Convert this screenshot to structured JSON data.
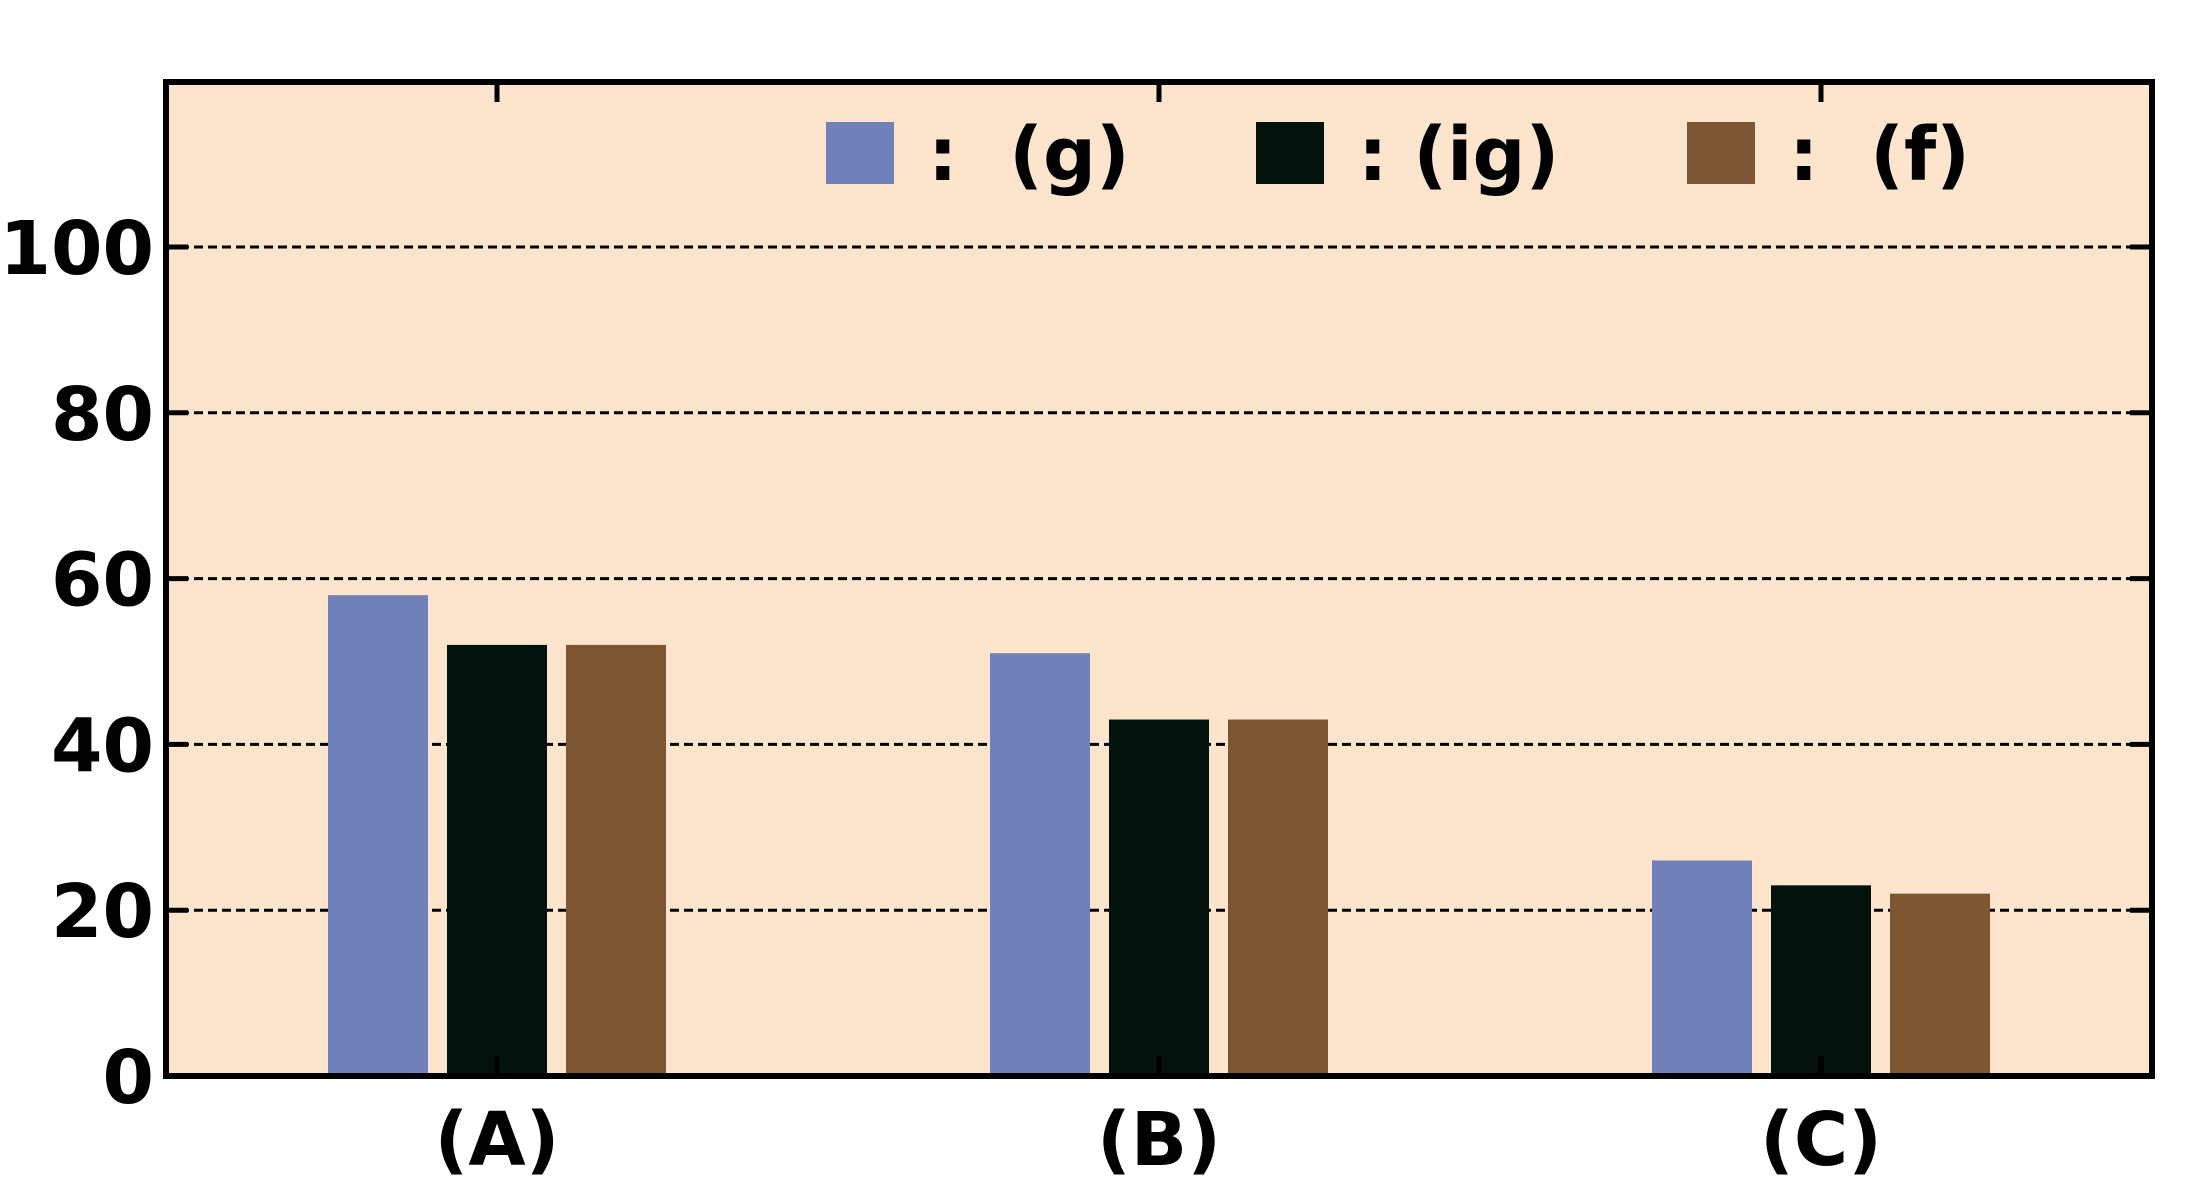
{
  "chart_data": {
    "type": "bar",
    "categories": [
      "(A)",
      "(B)",
      "(C)"
    ],
    "series": [
      {
        "name": ":  (g)",
        "color": "#7080b8",
        "values": [
          58,
          51,
          26
        ]
      },
      {
        "name": ": (ig)",
        "color": "#04120e",
        "values": [
          52,
          43,
          23
        ]
      },
      {
        "name": ":  (f)",
        "color": "#7d5734",
        "values": [
          52,
          43,
          22
        ]
      }
    ],
    "ylim": [
      0,
      100
    ],
    "yticks": [
      0,
      20,
      40,
      60,
      80,
      100
    ],
    "grid": true,
    "legend_position": "top-right",
    "background_color": "#fde4cc",
    "title": "",
    "xlabel": "",
    "ylabel": ""
  }
}
